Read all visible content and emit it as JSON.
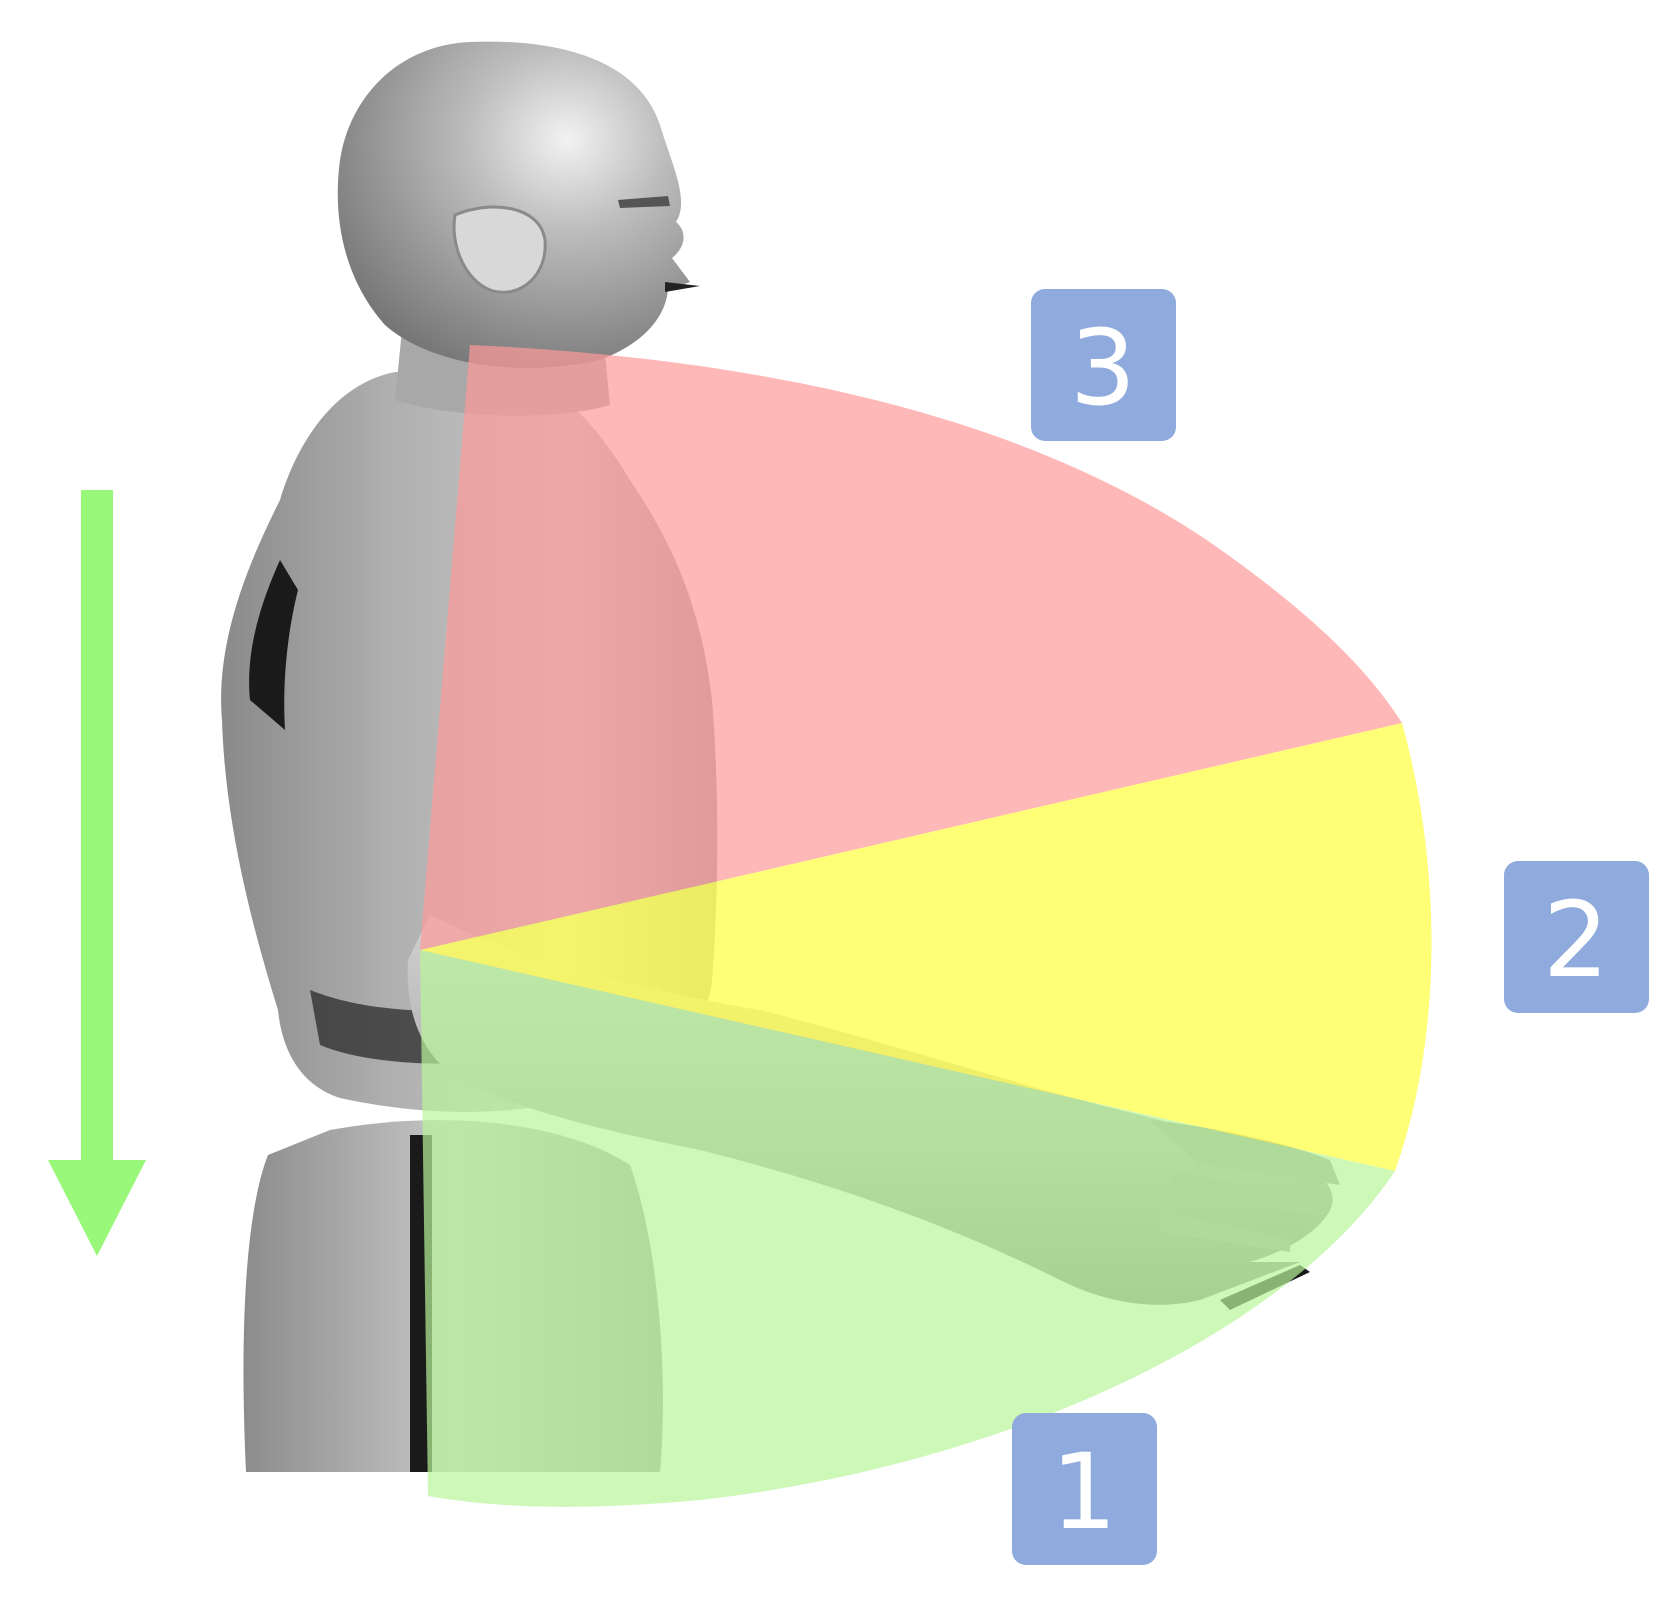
{
  "zones": [
    {
      "id": "1",
      "label": "1",
      "color": "#b8f59a",
      "opacity": 0.7
    },
    {
      "id": "2",
      "label": "2",
      "color": "#ffff55",
      "opacity": 0.8
    },
    {
      "id": "3",
      "label": "3",
      "color": "#ff9a9a",
      "opacity": 0.7
    }
  ],
  "label_box_color": "#8faadc",
  "arrow_color": "#99f77a",
  "figure_colors": {
    "body_light": "#c4c4c4",
    "body_mid": "#a2a2a2",
    "body_dark": "#767676",
    "shadow": "#1a1a1a"
  }
}
